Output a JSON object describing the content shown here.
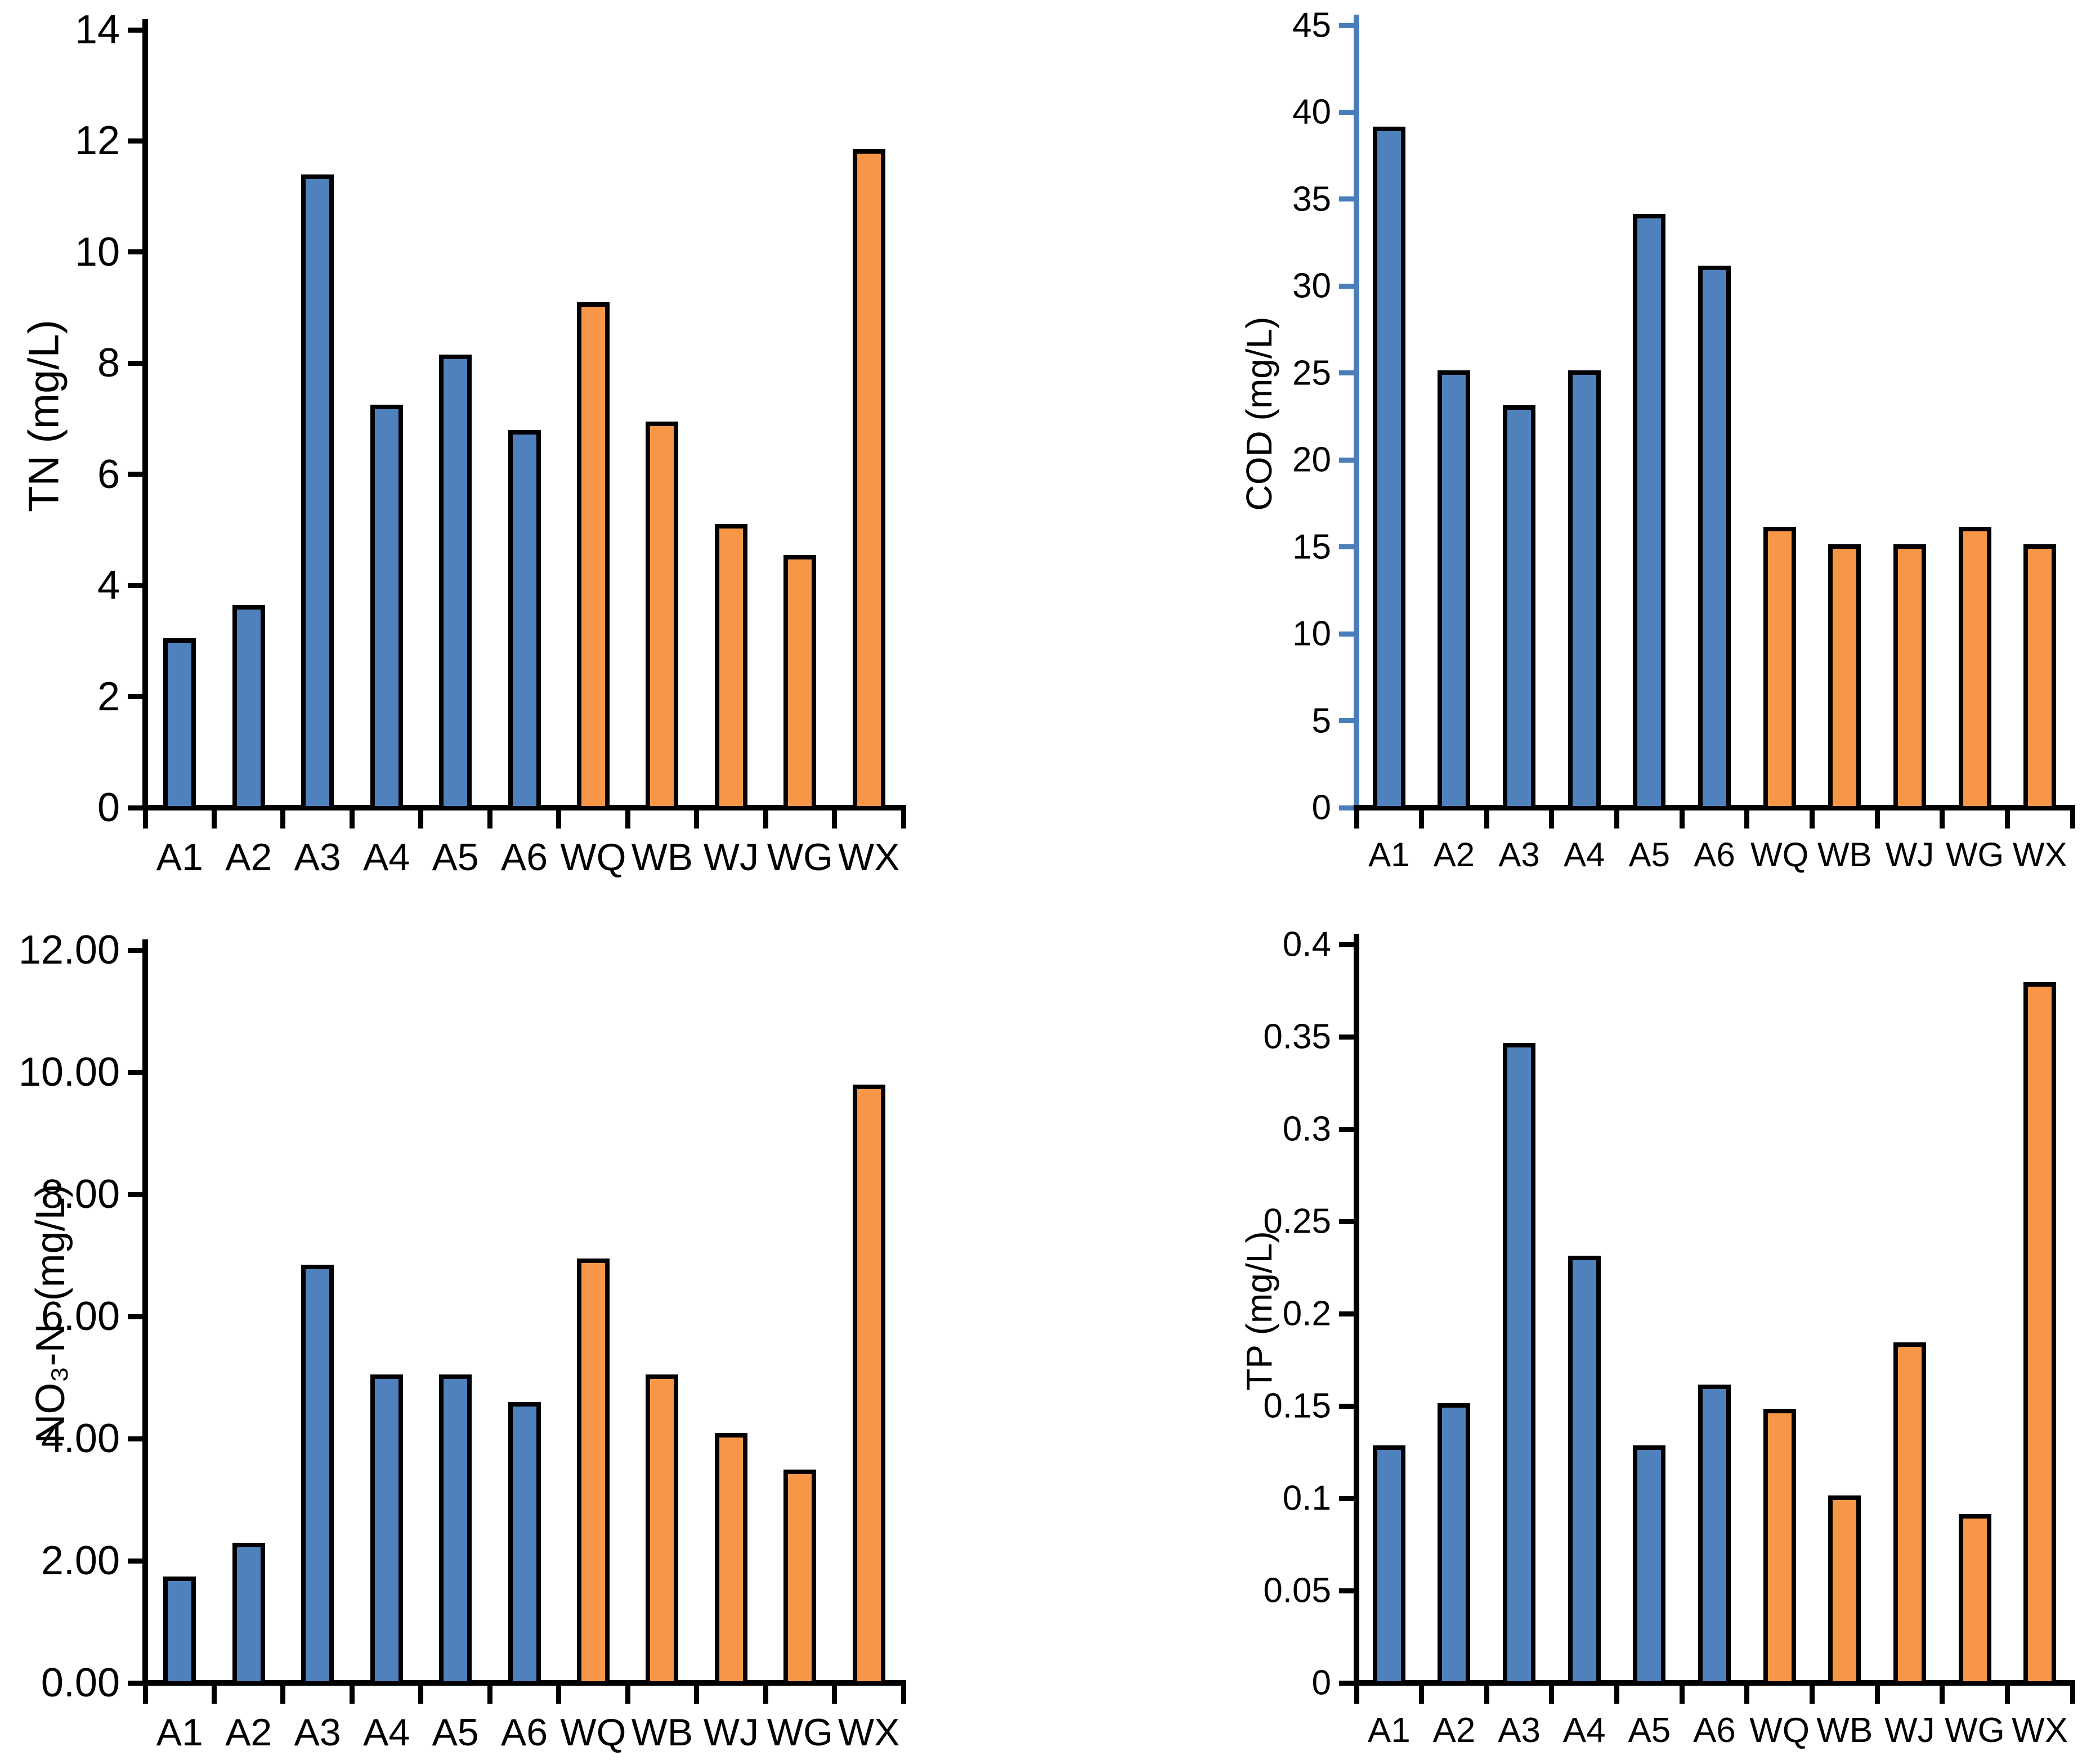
{
  "page": {
    "background": "#FFFFFF",
    "description_categories": [
      "A1",
      "A2",
      "A3",
      "A4",
      "A5",
      "A6",
      "WQ",
      "WB",
      "WJ",
      "WG",
      "WX"
    ]
  },
  "colors": {
    "blue_bar": "#4F81BD",
    "orange_bar": "#F79646",
    "bar_outline": "#000000",
    "black_axis": "#000000",
    "cod_blue_axis": "#4A7EBB"
  },
  "chart_data": [
    {
      "id": "tn",
      "type": "bar",
      "ylabel": "TN (mg/L)",
      "xlabel": "",
      "ylim": [
        0,
        14
      ],
      "grid": false,
      "legend": "none",
      "yticks": [
        "0",
        "2",
        "4",
        "6",
        "8",
        "10",
        "12",
        "14"
      ],
      "categories": [
        "A1",
        "A2",
        "A3",
        "A4",
        "A5",
        "A6",
        "WQ",
        "WB",
        "WJ",
        "WG",
        "WX"
      ],
      "values": [
        3.0,
        3.6,
        11.35,
        7.2,
        8.1,
        6.75,
        9.05,
        6.9,
        5.05,
        4.5,
        11.8
      ],
      "bar_colors": [
        "#4F81BD",
        "#4F81BD",
        "#4F81BD",
        "#4F81BD",
        "#4F81BD",
        "#4F81BD",
        "#F79646",
        "#F79646",
        "#F79646",
        "#F79646",
        "#F79646"
      ],
      "y_axis_color": "#000000",
      "x_axis_color": "#000000"
    },
    {
      "id": "cod",
      "type": "bar",
      "ylabel": "COD (mg/L)",
      "xlabel": "",
      "ylim": [
        0,
        45
      ],
      "grid": false,
      "legend": "none",
      "yticks": [
        "0",
        "5",
        "10",
        "15",
        "20",
        "25",
        "30",
        "35",
        "40",
        "45"
      ],
      "categories": [
        "A1",
        "A2",
        "A3",
        "A4",
        "A5",
        "A6",
        "WQ",
        "WB",
        "WJ",
        "WG",
        "WX"
      ],
      "values": [
        39,
        25,
        23,
        25,
        34,
        31,
        16,
        15,
        15,
        16,
        15
      ],
      "bar_colors": [
        "#4F81BD",
        "#4F81BD",
        "#4F81BD",
        "#4F81BD",
        "#4F81BD",
        "#4F81BD",
        "#F79646",
        "#F79646",
        "#F79646",
        "#F79646",
        "#F79646"
      ],
      "y_axis_color": "#4A7EBB",
      "x_axis_color": "#000000"
    },
    {
      "id": "no3n",
      "type": "bar",
      "ylabel": "NO₃-N  (mg/L)",
      "xlabel": "",
      "ylim": [
        0,
        12
      ],
      "grid": false,
      "legend": "none",
      "yticks": [
        "0.00",
        "2.00",
        "4.00",
        "6.00",
        "8.00",
        "10.00",
        "12.00"
      ],
      "categories": [
        "A1",
        "A2",
        "A3",
        "A4",
        "A5",
        "A6",
        "WQ",
        "WB",
        "WJ",
        "WG",
        "WX"
      ],
      "values": [
        1.7,
        2.25,
        6.8,
        5.0,
        5.0,
        4.55,
        6.9,
        5.0,
        4.05,
        3.45,
        9.75
      ],
      "bar_colors": [
        "#4F81BD",
        "#4F81BD",
        "#4F81BD",
        "#4F81BD",
        "#4F81BD",
        "#4F81BD",
        "#F79646",
        "#F79646",
        "#F79646",
        "#F79646",
        "#F79646"
      ],
      "y_axis_color": "#000000",
      "x_axis_color": "#000000"
    },
    {
      "id": "tp",
      "type": "bar",
      "ylabel": "TP (mg/L)",
      "xlabel": "",
      "ylim": [
        0,
        0.4
      ],
      "grid": false,
      "legend": "none",
      "yticks": [
        "0",
        "0.05",
        "0.1",
        "0.15",
        "0.2",
        "0.25",
        "0.3",
        "0.35",
        "0.4"
      ],
      "categories": [
        "A1",
        "A2",
        "A3",
        "A4",
        "A5",
        "A6",
        "WQ",
        "WB",
        "WJ",
        "WG",
        "WX"
      ],
      "values": [
        0.127,
        0.15,
        0.345,
        0.23,
        0.127,
        0.16,
        0.147,
        0.1,
        0.183,
        0.09,
        0.378
      ],
      "bar_colors": [
        "#4F81BD",
        "#4F81BD",
        "#4F81BD",
        "#4F81BD",
        "#4F81BD",
        "#4F81BD",
        "#F79646",
        "#F79646",
        "#F79646",
        "#F79646",
        "#F79646"
      ],
      "y_axis_color": "#000000",
      "x_axis_color": "#000000"
    }
  ]
}
